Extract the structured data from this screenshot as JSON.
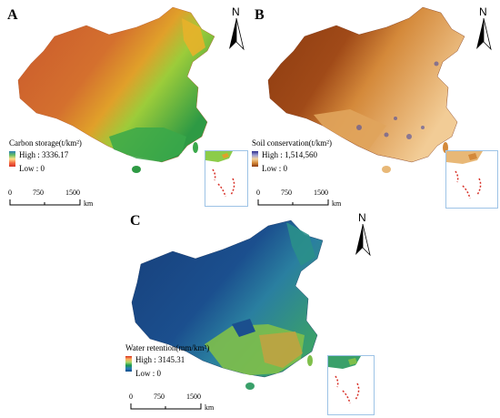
{
  "panels": [
    {
      "letter": "A",
      "legend_title": "Carbon storage(t/km²)",
      "high_label": "High : 3336.17",
      "low_label": "Low : 0",
      "gradient": [
        "#1a9850",
        "#66bd63",
        "#d9ef8b",
        "#fee08b",
        "#f46d43",
        "#d73027"
      ],
      "base_color": "#d2612e",
      "east_color": "#8ccc4a"
    },
    {
      "letter": "B",
      "legend_title": "Soil conservation(t/km²)",
      "high_label": "High : 1,514,560",
      "low_label": "Low : 0",
      "gradient": [
        "#2c2c8c",
        "#6a6ab0",
        "#f2d3a0",
        "#d48a3a",
        "#8c3a10"
      ],
      "base_color": "#9a4a18",
      "east_color": "#e8b877"
    },
    {
      "letter": "C",
      "legend_title": "Water retention(mm/km²)",
      "high_label": "High : 3145.31",
      "low_label": "Low : 0",
      "gradient": [
        "#d7301f",
        "#fdae61",
        "#a6d96a",
        "#1a9850",
        "#2c7fb8",
        "#0c4a8c"
      ],
      "base_color": "#1b4f8e",
      "east_color": "#3a9a6a"
    }
  ],
  "scale_labels": [
    "0",
    "750",
    "1500",
    "km"
  ],
  "north_label": "N"
}
